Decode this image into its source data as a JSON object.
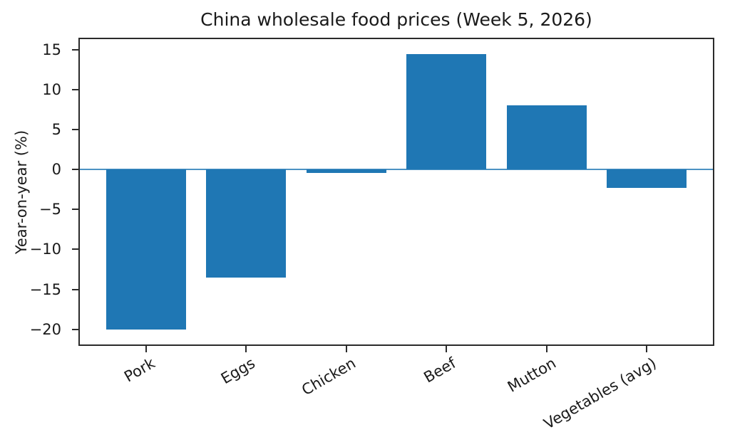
{
  "chart_data": {
    "type": "bar",
    "title": "China wholesale food prices (Week 5, 2026)",
    "ylabel": "Year-on-year (%)",
    "xlabel": "",
    "categories": [
      "Pork",
      "Eggs",
      "Chicken",
      "Beef",
      "Mutton",
      "Vegetables (avg)"
    ],
    "values": [
      -20.0,
      -13.5,
      -0.4,
      14.4,
      8.0,
      -2.3
    ],
    "yticks": [
      15,
      10,
      5,
      0,
      -5,
      -10,
      -15,
      -20
    ],
    "ylim": [
      -21.9,
      16.3
    ],
    "xlim": [
      -0.66,
      5.66
    ],
    "bar_rel_width": 0.8,
    "bar_color": "#1f77b4",
    "zero_line_color": "rgba(31,119,180,0.8)",
    "axis_color": "#2a2a2a",
    "text_color": "#1a1a1a",
    "grid": false,
    "legend": null,
    "x_tick_rotation_deg": 30
  }
}
